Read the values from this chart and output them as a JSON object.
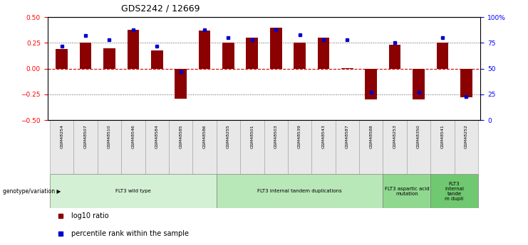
{
  "title": "GDS2242 / 12669",
  "samples": [
    "GSM48254",
    "GSM48507",
    "GSM48510",
    "GSM48546",
    "GSM48584",
    "GSM48585",
    "GSM48586",
    "GSM48255",
    "GSM48501",
    "GSM48503",
    "GSM48539",
    "GSM48543",
    "GSM48587",
    "GSM48588",
    "GSM48253",
    "GSM48350",
    "GSM48541",
    "GSM48252"
  ],
  "log10_ratio": [
    0.19,
    0.25,
    0.2,
    0.38,
    0.18,
    -0.29,
    0.37,
    0.25,
    0.3,
    0.4,
    0.25,
    0.3,
    0.003,
    -0.3,
    0.23,
    -0.3,
    0.25,
    -0.28
  ],
  "percentile_rank": [
    72,
    82,
    78,
    88,
    72,
    47,
    88,
    80,
    78,
    88,
    83,
    78,
    78,
    27,
    75,
    27,
    80,
    23
  ],
  "bar_color": "#8B0000",
  "dot_color": "#0000CD",
  "zero_line_color": "#CC0000",
  "dotted_line_color": "#555555",
  "groups": [
    {
      "label": "FLT3 wild type",
      "start": 0,
      "end": 7,
      "color": "#d4f0d4"
    },
    {
      "label": "FLT3 internal tandem duplications",
      "start": 7,
      "end": 14,
      "color": "#b8e8b8"
    },
    {
      "label": "FLT3 aspartic acid\nmutation",
      "start": 14,
      "end": 16,
      "color": "#90d890"
    },
    {
      "label": "FLT3\ninternal\ntande\nm dupli",
      "start": 16,
      "end": 18,
      "color": "#70c870"
    }
  ],
  "ylim": [
    -0.5,
    0.5
  ],
  "y_ticks_left": [
    -0.5,
    -0.25,
    0,
    0.25,
    0.5
  ],
  "y_ticks_right": [
    0,
    25,
    50,
    75,
    100
  ],
  "legend_items": [
    {
      "label": "log10 ratio",
      "color": "#8B0000"
    },
    {
      "label": "percentile rank within the sample",
      "color": "#0000CD"
    }
  ],
  "background_color": "#ffffff"
}
